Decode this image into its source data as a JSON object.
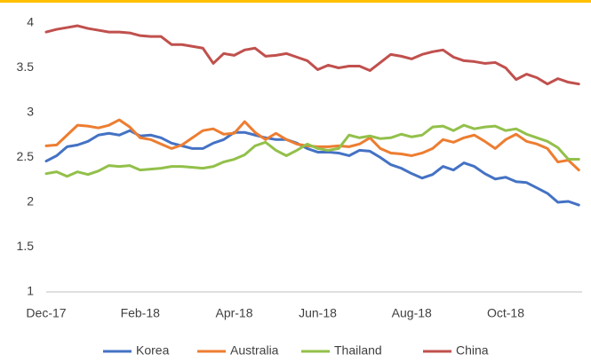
{
  "chart_data": {
    "type": "line",
    "categories": [
      "Dec-17",
      null,
      null,
      null,
      null,
      null,
      null,
      null,
      null,
      "Feb-18",
      null,
      null,
      null,
      null,
      null,
      null,
      null,
      null,
      "Apr-18",
      null,
      null,
      null,
      null,
      null,
      null,
      null,
      "Jun-18",
      null,
      null,
      null,
      null,
      null,
      null,
      null,
      null,
      "Aug-18",
      null,
      null,
      null,
      null,
      null,
      null,
      null,
      null,
      "Oct-18",
      null,
      null,
      null,
      null,
      null,
      null,
      null
    ],
    "series": [
      {
        "name": "Korea",
        "color": "#4472c4",
        "values": [
          2.46,
          2.52,
          2.62,
          2.64,
          2.68,
          2.75,
          2.77,
          2.75,
          2.8,
          2.74,
          2.75,
          2.72,
          2.66,
          2.63,
          2.6,
          2.6,
          2.66,
          2.7,
          2.78,
          2.78,
          2.75,
          2.72,
          2.7,
          2.7,
          2.66,
          2.6,
          2.56,
          2.56,
          2.55,
          2.52,
          2.58,
          2.57,
          2.5,
          2.42,
          2.38,
          2.32,
          2.27,
          2.31,
          2.4,
          2.36,
          2.44,
          2.4,
          2.32,
          2.26,
          2.28,
          2.23,
          2.22,
          2.16,
          2.1,
          2.0,
          2.01,
          1.97
        ]
      },
      {
        "name": "Australia",
        "color": "#ed7d31",
        "values": [
          2.63,
          2.64,
          2.75,
          2.86,
          2.85,
          2.83,
          2.86,
          2.92,
          2.84,
          2.72,
          2.7,
          2.65,
          2.6,
          2.64,
          2.72,
          2.8,
          2.82,
          2.76,
          2.77,
          2.9,
          2.78,
          2.7,
          2.77,
          2.7,
          2.65,
          2.63,
          2.62,
          2.62,
          2.63,
          2.62,
          2.65,
          2.72,
          2.6,
          2.55,
          2.54,
          2.52,
          2.55,
          2.6,
          2.7,
          2.67,
          2.72,
          2.75,
          2.68,
          2.6,
          2.7,
          2.76,
          2.68,
          2.65,
          2.6,
          2.45,
          2.47,
          2.36
        ]
      },
      {
        "name": "Thailand",
        "color": "#92c04a",
        "values": [
          2.32,
          2.34,
          2.29,
          2.34,
          2.31,
          2.35,
          2.41,
          2.4,
          2.41,
          2.36,
          2.37,
          2.38,
          2.4,
          2.4,
          2.39,
          2.38,
          2.4,
          2.45,
          2.48,
          2.53,
          2.63,
          2.67,
          2.58,
          2.52,
          2.58,
          2.65,
          2.6,
          2.58,
          2.6,
          2.75,
          2.72,
          2.74,
          2.71,
          2.72,
          2.76,
          2.73,
          2.75,
          2.84,
          2.85,
          2.8,
          2.86,
          2.82,
          2.84,
          2.85,
          2.8,
          2.82,
          2.76,
          2.72,
          2.68,
          2.61,
          2.48,
          2.48
        ]
      },
      {
        "name": "China",
        "color": "#c0504d",
        "values": [
          3.9,
          3.93,
          3.95,
          3.97,
          3.94,
          3.92,
          3.9,
          3.9,
          3.89,
          3.86,
          3.85,
          3.85,
          3.76,
          3.76,
          3.74,
          3.72,
          3.55,
          3.66,
          3.64,
          3.7,
          3.72,
          3.63,
          3.64,
          3.66,
          3.62,
          3.58,
          3.48,
          3.53,
          3.5,
          3.52,
          3.52,
          3.47,
          3.56,
          3.65,
          3.63,
          3.6,
          3.65,
          3.68,
          3.7,
          3.62,
          3.58,
          3.57,
          3.55,
          3.56,
          3.5,
          3.37,
          3.43,
          3.39,
          3.32,
          3.38,
          3.34,
          3.32
        ]
      }
    ],
    "ylim": [
      1,
      4
    ],
    "yticks": [
      1,
      1.5,
      2,
      2.5,
      3,
      3.5,
      4
    ],
    "grid": false,
    "legend": "bottom"
  }
}
